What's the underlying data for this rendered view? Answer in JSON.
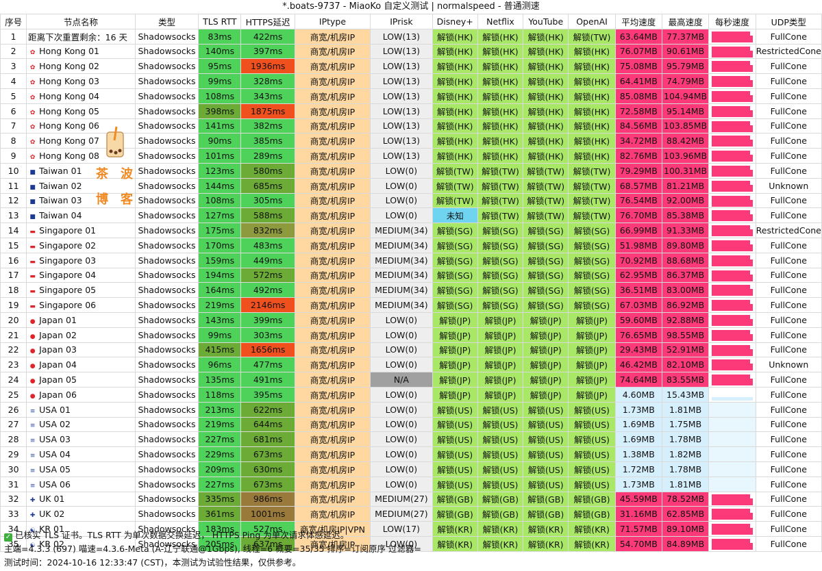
{
  "title": "*.boats-9737 - MiaoKo 自定义测试 | normalspeed - 普通测速",
  "headers": [
    "序号",
    "节点名称",
    "类型",
    "TLS RTT",
    "HTTPS延迟",
    "IPtype",
    "IPrisk",
    "Disney+",
    "Netflix",
    "YouTube",
    "OpenAI",
    "平均速度",
    "最高速度",
    "每秒速度",
    "UDP类型"
  ],
  "notice": {
    "index": "1",
    "text": "距离下次重置剩余：16 天",
    "type": "Shadowsocks",
    "tls": "83ms",
    "https": "422ms",
    "iptype": "商宽/机房IP",
    "iprisk": "LOW(13)",
    "disney": "解锁(HK)",
    "netflix": "解锁(HK)",
    "youtube": "解锁(HK)",
    "openai": "解锁(TW)",
    "avg": "63.64MB",
    "max": "77.37MB",
    "udp": "FullCone"
  },
  "rows": [
    {
      "i": "2",
      "flag": "hk",
      "name": "Hong Kong 01",
      "tls": "140ms",
      "https": "397ms",
      "iptype": "商宽/机房IP",
      "iprisk": "LOW(13)",
      "region": "HK",
      "openai": "HK",
      "avg": "76.07MB",
      "max": "90.61MB",
      "udp": "RestrictedCone"
    },
    {
      "i": "3",
      "flag": "hk",
      "name": "Hong Kong 02",
      "tls": "95ms",
      "https": "1936ms",
      "iptype": "商宽/机房IP",
      "iprisk": "LOW(13)",
      "region": "HK",
      "openai": "HK",
      "avg": "75.08MB",
      "max": "95.79MB",
      "udp": "FullCone"
    },
    {
      "i": "4",
      "flag": "hk",
      "name": "Hong Kong 03",
      "tls": "99ms",
      "https": "328ms",
      "iptype": "商宽/机房IP",
      "iprisk": "LOW(13)",
      "region": "HK",
      "openai": "HK",
      "avg": "64.41MB",
      "max": "74.79MB",
      "udp": "FullCone"
    },
    {
      "i": "5",
      "flag": "hk",
      "name": "Hong Kong 04",
      "tls": "108ms",
      "https": "343ms",
      "iptype": "商宽/机房IP",
      "iprisk": "LOW(13)",
      "region": "HK",
      "openai": "HK",
      "avg": "85.08MB",
      "max": "104.94MB",
      "udp": "FullCone"
    },
    {
      "i": "6",
      "flag": "hk",
      "name": "Hong Kong 05",
      "tls": "398ms",
      "https": "1875ms",
      "iptype": "商宽/机房IP",
      "iprisk": "LOW(13)",
      "region": "HK",
      "openai": "HK",
      "avg": "72.58MB",
      "max": "95.14MB",
      "udp": "FullCone"
    },
    {
      "i": "7",
      "flag": "hk",
      "name": "Hong Kong 06",
      "tls": "141ms",
      "https": "382ms",
      "iptype": "商宽/机房IP",
      "iprisk": "LOW(13)",
      "region": "HK",
      "openai": "HK",
      "avg": "84.56MB",
      "max": "103.85MB",
      "udp": "FullCone"
    },
    {
      "i": "8",
      "flag": "hk",
      "name": "Hong Kong 07",
      "tls": "90ms",
      "https": "385ms",
      "iptype": "商宽/机房IP",
      "iprisk": "LOW(13)",
      "region": "HK",
      "openai": "HK",
      "avg": "34.72MB",
      "max": "88.42MB",
      "udp": "FullCone"
    },
    {
      "i": "9",
      "flag": "hk",
      "name": "Hong Kong 08",
      "tls": "101ms",
      "https": "289ms",
      "iptype": "商宽/机房IP",
      "iprisk": "LOW(13)",
      "region": "HK",
      "openai": "HK",
      "avg": "82.76MB",
      "max": "103.96MB",
      "udp": "FullCone"
    },
    {
      "i": "10",
      "flag": "tw",
      "name": "Taiwan 01",
      "tls": "123ms",
      "https": "580ms",
      "iptype": "商宽/机房IP",
      "iprisk": "LOW(0)",
      "region": "TW",
      "openai": "TW",
      "avg": "79.29MB",
      "max": "100.31MB",
      "udp": "FullCone"
    },
    {
      "i": "11",
      "flag": "tw",
      "name": "Taiwan 02",
      "tls": "144ms",
      "https": "685ms",
      "iptype": "商宽/机房IP",
      "iprisk": "LOW(0)",
      "region": "TW",
      "openai": "TW",
      "avg": "68.57MB",
      "max": "81.21MB",
      "udp": "Unknown"
    },
    {
      "i": "12",
      "flag": "tw",
      "name": "Taiwan 03",
      "tls": "108ms",
      "https": "305ms",
      "iptype": "商宽/机房IP",
      "iprisk": "LOW(0)",
      "region": "TW",
      "openai": "TW",
      "avg": "76.54MB",
      "max": "92.00MB",
      "udp": "FullCone"
    },
    {
      "i": "13",
      "flag": "tw",
      "name": "Taiwan 04",
      "tls": "127ms",
      "https": "588ms",
      "iptype": "商宽/机房IP",
      "iprisk": "LOW(0)",
      "region": "TW",
      "openai": "TW",
      "avg": "76.70MB",
      "max": "85.38MB",
      "udp": "FullCone",
      "disney": "未知"
    },
    {
      "i": "14",
      "flag": "sg",
      "name": "Singapore 01",
      "tls": "175ms",
      "https": "832ms",
      "iptype": "商宽/机房IP",
      "iprisk": "MEDIUM(34)",
      "region": "SG",
      "openai": "SG",
      "avg": "66.99MB",
      "max": "91.33MB",
      "udp": "RestrictedCone"
    },
    {
      "i": "15",
      "flag": "sg",
      "name": "Singapore 02",
      "tls": "170ms",
      "https": "483ms",
      "iptype": "商宽/机房IP",
      "iprisk": "MEDIUM(34)",
      "region": "SG",
      "openai": "SG",
      "avg": "51.98MB",
      "max": "89.80MB",
      "udp": "FullCone"
    },
    {
      "i": "16",
      "flag": "sg",
      "name": "Singapore 03",
      "tls": "159ms",
      "https": "449ms",
      "iptype": "商宽/机房IP",
      "iprisk": "MEDIUM(34)",
      "region": "SG",
      "openai": "SG",
      "avg": "70.92MB",
      "max": "88.68MB",
      "udp": "FullCone"
    },
    {
      "i": "17",
      "flag": "sg",
      "name": "Singapore 04",
      "tls": "194ms",
      "https": "572ms",
      "iptype": "商宽/机房IP",
      "iprisk": "MEDIUM(34)",
      "region": "SG",
      "openai": "SG",
      "avg": "62.95MB",
      "max": "86.37MB",
      "udp": "FullCone"
    },
    {
      "i": "18",
      "flag": "sg",
      "name": "Singapore 05",
      "tls": "164ms",
      "https": "492ms",
      "iptype": "商宽/机房IP",
      "iprisk": "MEDIUM(34)",
      "region": "SG",
      "openai": "SG",
      "avg": "36.51MB",
      "max": "83.00MB",
      "udp": "FullCone"
    },
    {
      "i": "19",
      "flag": "sg",
      "name": "Singapore 06",
      "tls": "219ms",
      "https": "2146ms",
      "iptype": "商宽/机房IP",
      "iprisk": "MEDIUM(34)",
      "region": "SG",
      "openai": "SG",
      "avg": "67.03MB",
      "max": "86.92MB",
      "udp": "FullCone"
    },
    {
      "i": "20",
      "flag": "jp",
      "name": "Japan 01",
      "tls": "143ms",
      "https": "399ms",
      "iptype": "商宽/机房IP",
      "iprisk": "LOW(0)",
      "region": "JP",
      "openai": "JP",
      "avg": "59.60MB",
      "max": "92.88MB",
      "udp": "FullCone"
    },
    {
      "i": "21",
      "flag": "jp",
      "name": "Japan 02",
      "tls": "99ms",
      "https": "303ms",
      "iptype": "商宽/机房IP",
      "iprisk": "LOW(0)",
      "region": "JP",
      "openai": "JP",
      "avg": "76.65MB",
      "max": "98.55MB",
      "udp": "FullCone"
    },
    {
      "i": "22",
      "flag": "jp",
      "name": "Japan 03",
      "tls": "415ms",
      "https": "1656ms",
      "iptype": "商宽/机房IP",
      "iprisk": "LOW(0)",
      "region": "JP",
      "openai": "JP",
      "avg": "29.43MB",
      "max": "52.91MB",
      "udp": "FullCone"
    },
    {
      "i": "23",
      "flag": "jp",
      "name": "Japan 04",
      "tls": "96ms",
      "https": "477ms",
      "iptype": "商宽/机房IP",
      "iprisk": "LOW(0)",
      "region": "JP",
      "openai": "JP",
      "avg": "46.42MB",
      "max": "82.10MB",
      "udp": "Unknown"
    },
    {
      "i": "24",
      "flag": "jp",
      "name": "Japan 05",
      "tls": "135ms",
      "https": "491ms",
      "iptype": "商宽/机房IP",
      "iprisk": "N/A",
      "region": "JP",
      "openai": "JP",
      "avg": "74.64MB",
      "max": "83.55MB",
      "udp": "FullCone"
    },
    {
      "i": "25",
      "flag": "jp",
      "name": "Japan 06",
      "tls": "118ms",
      "https": "395ms",
      "iptype": "商宽/机房IP",
      "iprisk": "LOW(0)",
      "region": "JP",
      "openai": "JP",
      "avg": "4.60MB",
      "max": "15.43MB",
      "udp": "FullCone"
    },
    {
      "i": "26",
      "flag": "us",
      "name": "USA 01",
      "tls": "213ms",
      "https": "622ms",
      "iptype": "商宽/机房IP",
      "iprisk": "LOW(0)",
      "region": "US",
      "openai": "US",
      "avg": "1.73MB",
      "max": "1.81MB",
      "udp": "FullCone"
    },
    {
      "i": "27",
      "flag": "us",
      "name": "USA 02",
      "tls": "219ms",
      "https": "644ms",
      "iptype": "商宽/机房IP",
      "iprisk": "LOW(0)",
      "region": "US",
      "openai": "US",
      "avg": "1.69MB",
      "max": "1.75MB",
      "udp": "FullCone"
    },
    {
      "i": "28",
      "flag": "us",
      "name": "USA 03",
      "tls": "227ms",
      "https": "681ms",
      "iptype": "商宽/机房IP",
      "iprisk": "LOW(0)",
      "region": "US",
      "openai": "US",
      "avg": "1.69MB",
      "max": "1.78MB",
      "udp": "FullCone"
    },
    {
      "i": "29",
      "flag": "us",
      "name": "USA 04",
      "tls": "229ms",
      "https": "673ms",
      "iptype": "商宽/机房IP",
      "iprisk": "LOW(0)",
      "region": "US",
      "openai": "US",
      "avg": "1.38MB",
      "max": "1.82MB",
      "udp": "FullCone"
    },
    {
      "i": "30",
      "flag": "us",
      "name": "USA 05",
      "tls": "209ms",
      "https": "630ms",
      "iptype": "商宽/机房IP",
      "iprisk": "LOW(0)",
      "region": "US",
      "openai": "US",
      "avg": "1.72MB",
      "max": "1.78MB",
      "udp": "FullCone"
    },
    {
      "i": "31",
      "flag": "us",
      "name": "USA 06",
      "tls": "227ms",
      "https": "673ms",
      "iptype": "商宽/机房IP",
      "iprisk": "LOW(0)",
      "region": "US",
      "openai": "US",
      "avg": "1.73MB",
      "max": "1.81MB",
      "udp": "FullCone"
    },
    {
      "i": "32",
      "flag": "gb",
      "name": "UK 01",
      "tls": "335ms",
      "https": "986ms",
      "iptype": "商宽/机房IP",
      "iprisk": "MEDIUM(27)",
      "region": "GB",
      "openai": "GB",
      "avg": "45.59MB",
      "max": "78.52MB",
      "udp": "FullCone"
    },
    {
      "i": "33",
      "flag": "gb",
      "name": "UK 02",
      "tls": "361ms",
      "https": "1001ms",
      "iptype": "商宽/机房IP",
      "iprisk": "MEDIUM(27)",
      "region": "GB",
      "openai": "GB",
      "avg": "31.16MB",
      "max": "62.85MB",
      "udp": "FullCone"
    },
    {
      "i": "34",
      "flag": "kr",
      "name": "KR 01",
      "tls": "183ms",
      "https": "527ms",
      "iptype": "商宽/机房IP|VPN",
      "iprisk": "LOW(17)",
      "region": "KR",
      "openai": "KR",
      "avg": "71.57MB",
      "max": "89.10MB",
      "udp": "FullCone"
    },
    {
      "i": "35",
      "flag": "kr",
      "name": "KR 02",
      "tls": "205ms",
      "https": "637ms",
      "iptype": "商宽/机房IP",
      "iprisk": "LOW(0)",
      "region": "KR",
      "openai": "KR",
      "avg": "54.70MB",
      "max": "84.89MB",
      "udp": "FullCone"
    }
  ],
  "type_label": "Shadowsocks",
  "unlock_prefix": "解锁",
  "footer": {
    "line1": "已核实 TLS 证书。TLS RTT 为单次数据交换延迟， HTTPS Ping 为单次请求体感延迟。",
    "line2": "主端=4.3.3 (697) 喵速=4.3.6-Meta (A-辽宁联通@1Gbps), 线程=6 概要=35/35 排序=订阅原序 过滤器=",
    "line3": "测试时间：2024-10-16 12:33:47 (CST)，本测试为试验性结果，仅供参考。"
  },
  "logo_text": [
    "茶",
    "波",
    "博",
    "客"
  ],
  "colors": {
    "green": "#4fd25a",
    "dark_green": "#6cab35",
    "olive": "#8d9a3e",
    "brown": "#9a7a3a",
    "red": "#f0501e",
    "orange": "#fed8a0",
    "unlock": "#a8e866",
    "pink": "#fc3a7a",
    "light_blue": "#d6effd",
    "gray": "#a0a0a0",
    "low_bg": "#eeeeee",
    "unknown_bg": "#6ed4f0"
  }
}
